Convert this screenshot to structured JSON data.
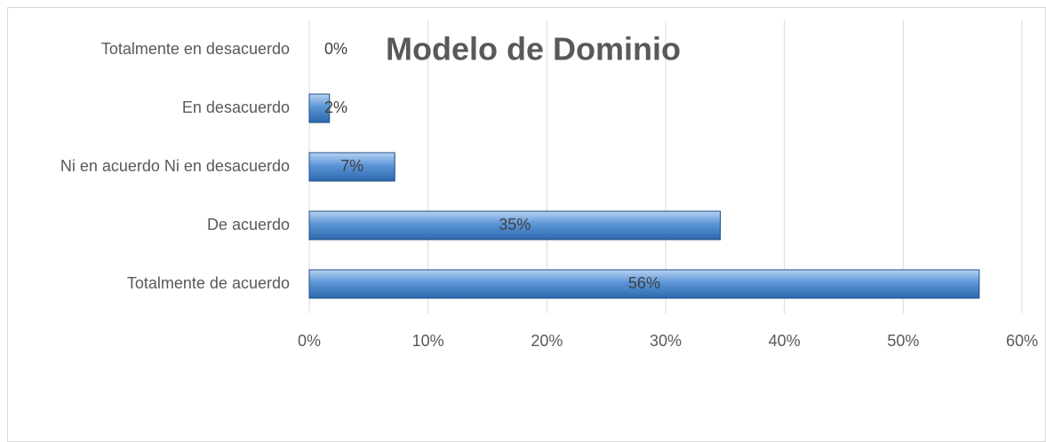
{
  "chart_data": {
    "type": "bar",
    "orientation": "horizontal",
    "title": "Modelo de Dominio",
    "categories": [
      "Totalmente en desacuerdo",
      "En desacuerdo",
      "Ni en acuerdo Ni en desacuerdo",
      "De acuerdo",
      "Totalmente de acuerdo"
    ],
    "values": [
      0,
      1.7,
      7.2,
      34.6,
      56.4
    ],
    "value_labels": [
      "0%",
      "2%",
      "7%",
      "35%",
      "56%"
    ],
    "color": "#4a86c8",
    "xlim": [
      0,
      60
    ],
    "xticks": [
      {
        "value": 0,
        "label": "0%"
      },
      {
        "value": 10,
        "label": "10%"
      },
      {
        "value": 20,
        "label": "20%"
      },
      {
        "value": 30,
        "label": "30%"
      },
      {
        "value": 40,
        "label": "40%"
      },
      {
        "value": 50,
        "label": "50%"
      },
      {
        "value": 60,
        "label": "60%"
      }
    ],
    "grid": true
  }
}
